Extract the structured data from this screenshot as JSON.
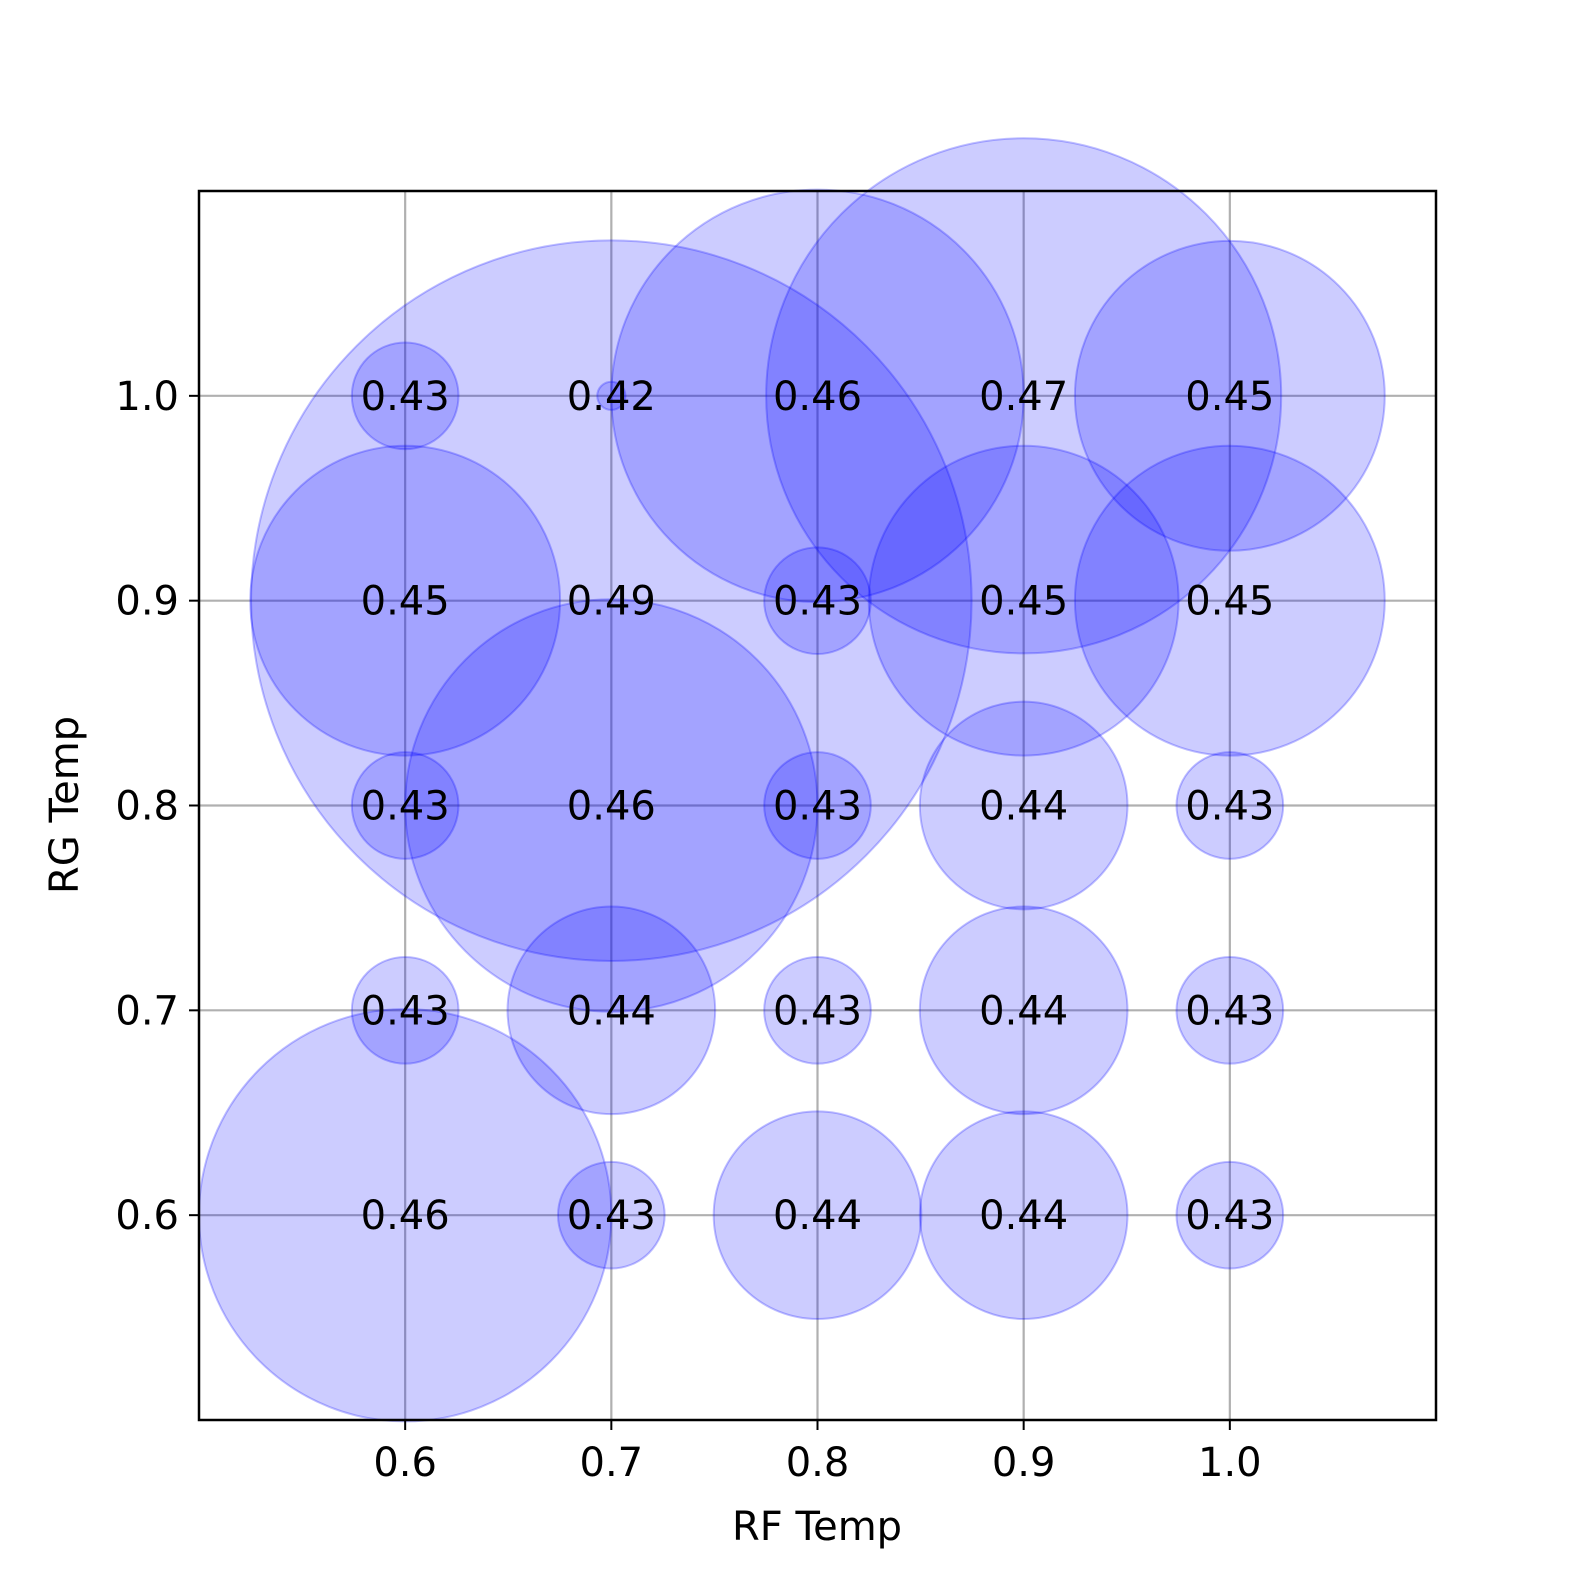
{
  "chart_data": {
    "type": "scatter",
    "xlabel": "RF Temp",
    "ylabel": "RG Temp",
    "xlim": [
      0.5,
      1.1
    ],
    "ylim": [
      0.5,
      1.1
    ],
    "xticks": [
      0.6,
      0.7,
      0.8,
      0.9,
      1.0
    ],
    "yticks": [
      0.6,
      0.7,
      0.8,
      0.9,
      1.0
    ],
    "xtick_labels": [
      "0.6",
      "0.7",
      "0.8",
      "0.9",
      "1.0"
    ],
    "ytick_labels": [
      "0.6",
      "0.7",
      "0.8",
      "0.9",
      "1.0"
    ],
    "grid": true,
    "bubble_color": "#0000ff",
    "bubble_alpha": 0.2,
    "points": [
      {
        "x": 0.6,
        "y": 1.0,
        "value": 0.43,
        "label": "0.43"
      },
      {
        "x": 0.7,
        "y": 1.0,
        "value": 0.42,
        "label": "0.42"
      },
      {
        "x": 0.8,
        "y": 1.0,
        "value": 0.46,
        "label": "0.46"
      },
      {
        "x": 0.9,
        "y": 1.0,
        "value": 0.47,
        "label": "0.47"
      },
      {
        "x": 1.0,
        "y": 1.0,
        "value": 0.45,
        "label": "0.45"
      },
      {
        "x": 0.6,
        "y": 0.9,
        "value": 0.45,
        "label": "0.45"
      },
      {
        "x": 0.7,
        "y": 0.9,
        "value": 0.49,
        "label": "0.49"
      },
      {
        "x": 0.8,
        "y": 0.9,
        "value": 0.43,
        "label": "0.43"
      },
      {
        "x": 0.9,
        "y": 0.9,
        "value": 0.45,
        "label": "0.45"
      },
      {
        "x": 1.0,
        "y": 0.9,
        "value": 0.45,
        "label": "0.45"
      },
      {
        "x": 0.6,
        "y": 0.8,
        "value": 0.43,
        "label": "0.43"
      },
      {
        "x": 0.7,
        "y": 0.8,
        "value": 0.46,
        "label": "0.46"
      },
      {
        "x": 0.8,
        "y": 0.8,
        "value": 0.43,
        "label": "0.43"
      },
      {
        "x": 0.9,
        "y": 0.8,
        "value": 0.44,
        "label": "0.44"
      },
      {
        "x": 1.0,
        "y": 0.8,
        "value": 0.43,
        "label": "0.43"
      },
      {
        "x": 0.6,
        "y": 0.7,
        "value": 0.43,
        "label": "0.43"
      },
      {
        "x": 0.7,
        "y": 0.7,
        "value": 0.44,
        "label": "0.44"
      },
      {
        "x": 0.8,
        "y": 0.7,
        "value": 0.43,
        "label": "0.43"
      },
      {
        "x": 0.9,
        "y": 0.7,
        "value": 0.44,
        "label": "0.44"
      },
      {
        "x": 1.0,
        "y": 0.7,
        "value": 0.43,
        "label": "0.43"
      },
      {
        "x": 0.6,
        "y": 0.6,
        "value": 0.46,
        "label": "0.46"
      },
      {
        "x": 0.7,
        "y": 0.6,
        "value": 0.43,
        "label": "0.43"
      },
      {
        "x": 0.8,
        "y": 0.6,
        "value": 0.44,
        "label": "0.44"
      },
      {
        "x": 0.9,
        "y": 0.6,
        "value": 0.44,
        "label": "0.44"
      },
      {
        "x": 1.0,
        "y": 0.6,
        "value": 0.43,
        "label": "0.43"
      }
    ]
  }
}
